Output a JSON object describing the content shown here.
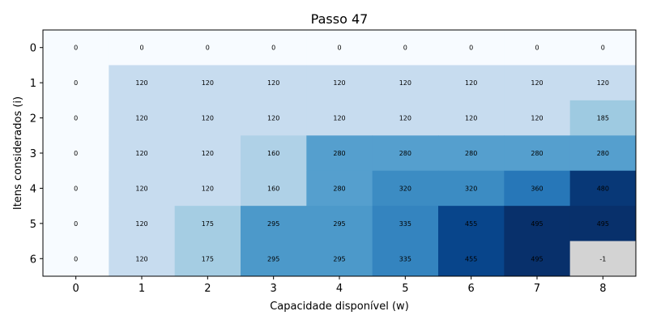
{
  "chart_data": {
    "type": "heatmap",
    "title": "Passo 47",
    "xlabel": "Capacidade disponível (w)",
    "ylabel": "Itens considerados (i)",
    "x_ticks": [
      "0",
      "1",
      "2",
      "3",
      "4",
      "5",
      "6",
      "7",
      "8"
    ],
    "y_ticks": [
      "0",
      "1",
      "2",
      "3",
      "4",
      "5",
      "6"
    ],
    "values": [
      [
        0,
        0,
        0,
        0,
        0,
        0,
        0,
        0,
        0
      ],
      [
        0,
        120,
        120,
        120,
        120,
        120,
        120,
        120,
        120
      ],
      [
        0,
        120,
        120,
        120,
        120,
        120,
        120,
        120,
        185
      ],
      [
        0,
        120,
        120,
        160,
        280,
        280,
        280,
        280,
        280
      ],
      [
        0,
        120,
        120,
        160,
        280,
        320,
        320,
        360,
        480
      ],
      [
        0,
        120,
        175,
        295,
        295,
        335,
        455,
        495,
        495
      ],
      [
        0,
        120,
        175,
        295,
        295,
        335,
        455,
        495,
        -1
      ]
    ],
    "colormap": "Blues",
    "vmin": 0,
    "vmax": 495,
    "unfilled_value": -1,
    "unfilled_color": "#d3d3d3",
    "grid": false
  }
}
